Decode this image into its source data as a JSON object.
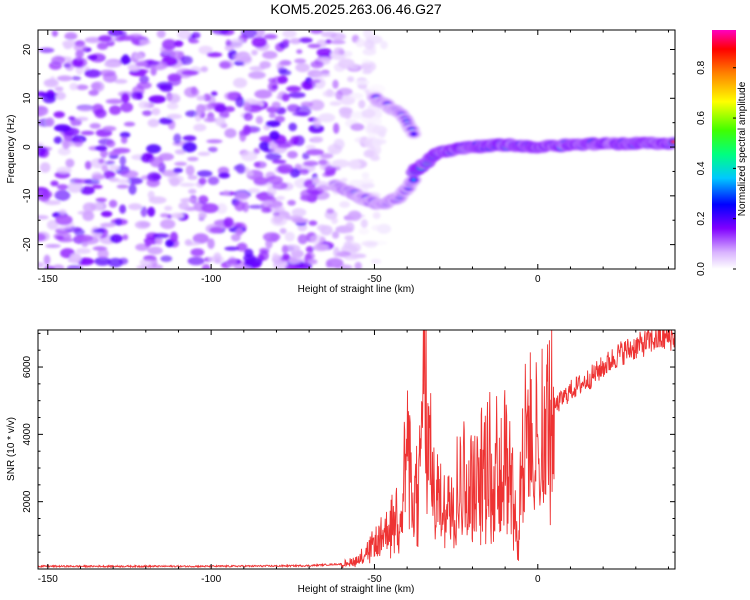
{
  "title": "KOM5.2025.263.06.46.G27",
  "colors": {
    "snr_line": "#ee3333",
    "background": "#ffffff",
    "axis": "#000000"
  },
  "chart_data": [
    {
      "type": "heatmap",
      "name": "spectrogram",
      "title": "KOM5.2025.263.06.46.G27",
      "xlabel": "Height of straight line (km)",
      "ylabel": "Frequency (Hz)",
      "xlim": [
        -153,
        42
      ],
      "ylim": [
        -25,
        24
      ],
      "xticks": [
        -150,
        -100,
        -50,
        0
      ],
      "yticks": [
        -20,
        -10,
        0,
        10,
        20
      ],
      "grid": false,
      "description_of_features": [
        {
          "segment": "noise",
          "x_range": [
            -153,
            -55
          ],
          "freq_range": [
            -25,
            24
          ],
          "amplitude": 0.15
        },
        {
          "segment": "upper_arm",
          "x": [
            -50,
            -42,
            -38
          ],
          "freq": [
            10,
            7,
            3
          ],
          "amplitude": 0.3
        },
        {
          "segment": "lower_arm",
          "x": [
            -62,
            -55,
            -48,
            -42,
            -38
          ],
          "freq": [
            -8,
            -10,
            -12,
            -10,
            -7
          ],
          "amplitude": 0.35
        },
        {
          "segment": "main_line",
          "x": [
            -38,
            -30,
            -20,
            -10,
            0,
            10,
            20,
            42
          ],
          "freq": [
            -5,
            -1,
            0,
            0.5,
            0,
            0.5,
            0.7,
            0.8
          ],
          "amplitude": 0.6
        }
      ],
      "colorbar": {
        "label": "Normalized spectral amplitude",
        "range": [
          0,
          0.95
        ],
        "ticks": [
          "0.0",
          "0.2",
          "0.4",
          "0.6",
          "0.8"
        ],
        "tick_values": [
          0.0,
          0.2,
          0.4,
          0.6,
          0.8
        ]
      }
    },
    {
      "type": "line",
      "name": "snr",
      "xlabel": "Height of straight line (km)",
      "ylabel": "SNR (10 * v/v)",
      "xlim": [
        -153,
        42
      ],
      "ylim": [
        0,
        7100
      ],
      "xticks": [
        -150,
        -100,
        -50,
        0
      ],
      "yticks": [
        2000,
        4000,
        6000
      ],
      "grid": false,
      "series": [
        {
          "name": "SNR",
          "x": [
            -153,
            -140,
            -120,
            -100,
            -80,
            -70,
            -60,
            -55,
            -50,
            -46,
            -44,
            -42,
            -40,
            -38,
            -36,
            -35,
            -33,
            -30,
            -27,
            -25,
            -22,
            -20,
            -17,
            -15,
            -12,
            -10,
            -8,
            -6,
            -5,
            -3,
            0,
            5,
            10,
            15,
            20,
            25,
            30,
            35,
            42
          ],
          "values": [
            80,
            80,
            80,
            80,
            90,
            100,
            150,
            300,
            800,
            1200,
            1600,
            2000,
            3800,
            2000,
            3000,
            7000,
            3500,
            2000,
            2400,
            2700,
            3000,
            2600,
            3200,
            3400,
            3600,
            3700,
            3000,
            600,
            3800,
            4200,
            4400,
            4800,
            5300,
            5600,
            6000,
            6400,
            6600,
            6800,
            6900
          ]
        }
      ]
    }
  ]
}
